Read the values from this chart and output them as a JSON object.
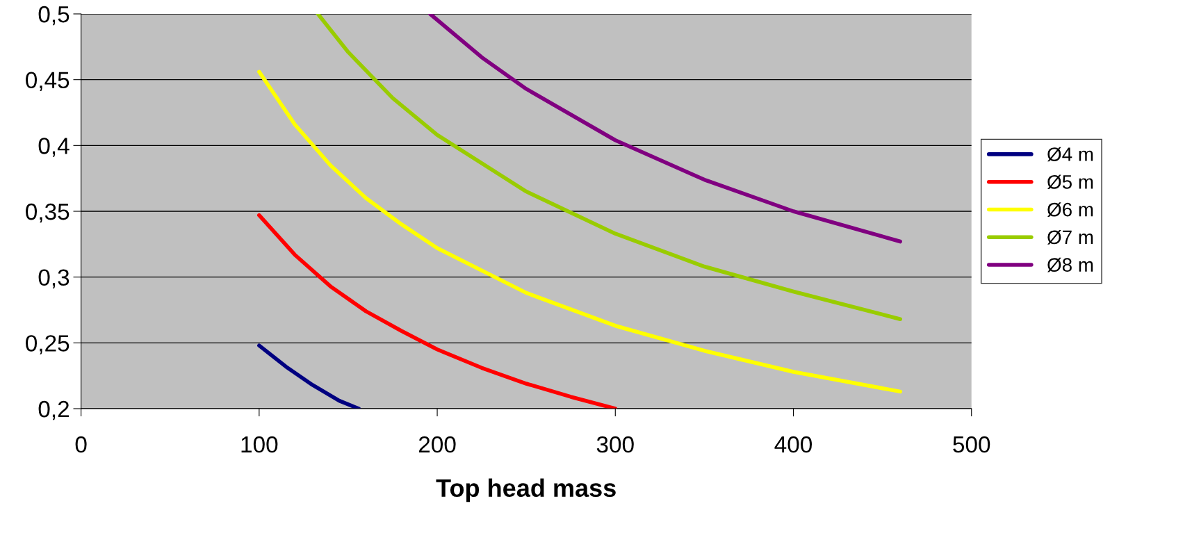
{
  "chart_data": {
    "type": "line",
    "xlabel": "Top head mass",
    "xlim": [
      0,
      500
    ],
    "xticks": [
      0,
      100,
      200,
      300,
      400,
      500
    ],
    "ylim": [
      0.2,
      0.5
    ],
    "yticks": [
      {
        "value": 0.2,
        "label": "0,2"
      },
      {
        "value": 0.25,
        "label": "0,25"
      },
      {
        "value": 0.3,
        "label": "0,3"
      },
      {
        "value": 0.35,
        "label": "0,35"
      },
      {
        "value": 0.4,
        "label": "0,4"
      },
      {
        "value": 0.45,
        "label": "0,45"
      },
      {
        "value": 0.5,
        "label": "0,5"
      }
    ],
    "grid": "y",
    "legend": "right",
    "marker": "none",
    "line_style": "solid",
    "series": [
      {
        "name": "Ø4 m",
        "color": "#000080",
        "x": [
          100,
          115,
          130,
          145,
          156
        ],
        "values": [
          0.248,
          0.232,
          0.218,
          0.206,
          0.2
        ]
      },
      {
        "name": "Ø5 m",
        "color": "#ff0000",
        "x": [
          100,
          120,
          140,
          160,
          180,
          200,
          225,
          250,
          275,
          300
        ],
        "values": [
          0.347,
          0.317,
          0.293,
          0.274,
          0.259,
          0.245,
          0.231,
          0.219,
          0.209,
          0.2
        ]
      },
      {
        "name": "Ø6 m",
        "color": "#ffff00",
        "x": [
          100,
          120,
          140,
          160,
          180,
          200,
          250,
          300,
          350,
          400,
          460
        ],
        "values": [
          0.456,
          0.416,
          0.385,
          0.36,
          0.34,
          0.322,
          0.288,
          0.263,
          0.244,
          0.228,
          0.213
        ]
      },
      {
        "name": "Ø7 m",
        "color": "#99cc00",
        "x": [
          133,
          150,
          175,
          200,
          250,
          300,
          350,
          400,
          460
        ],
        "values": [
          0.5,
          0.471,
          0.436,
          0.408,
          0.365,
          0.333,
          0.308,
          0.289,
          0.268
        ]
      },
      {
        "name": "Ø8 m",
        "color": "#800080",
        "x": [
          196,
          225,
          250,
          300,
          350,
          400,
          460
        ],
        "values": [
          0.5,
          0.467,
          0.443,
          0.404,
          0.374,
          0.35,
          0.327
        ]
      }
    ]
  }
}
